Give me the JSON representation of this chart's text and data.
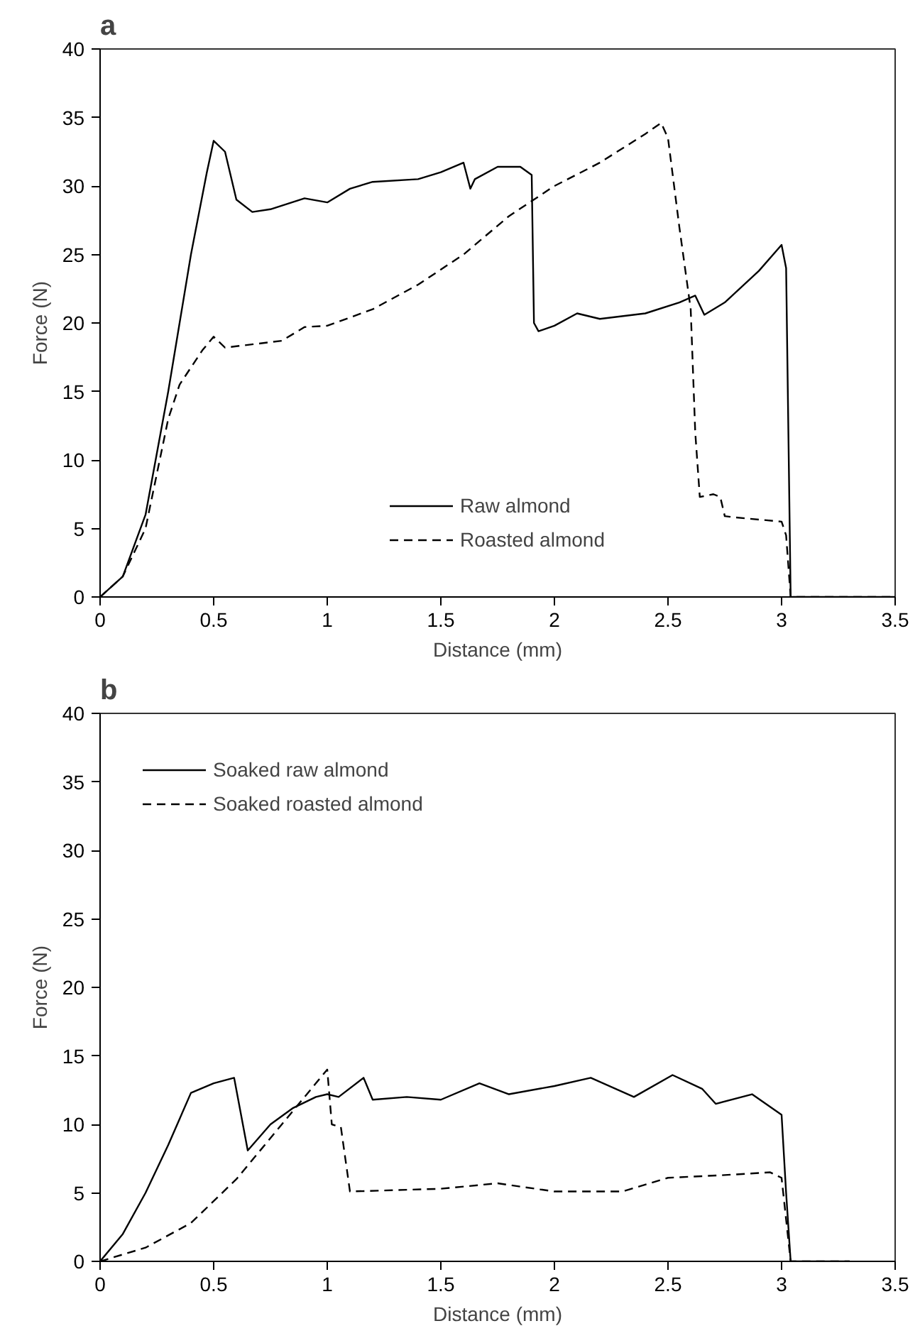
{
  "chart_data": [
    {
      "type": "line",
      "title": "a",
      "xlabel": "Distance (mm)",
      "ylabel": "Force (N)",
      "xlim": [
        0,
        3.5
      ],
      "ylim": [
        0,
        40
      ],
      "xticks": [
        0,
        0.5,
        1,
        1.5,
        2,
        2.5,
        3,
        3.5
      ],
      "yticks": [
        0,
        5,
        10,
        15,
        20,
        25,
        30,
        35,
        40
      ],
      "grid": false,
      "legend": "bottom",
      "series": [
        {
          "name": "Raw almond",
          "color": "#000000",
          "line_style": "solid",
          "x": [
            0,
            0.1,
            0.2,
            0.3,
            0.4,
            0.47,
            0.5,
            0.55,
            0.6,
            0.67,
            0.75,
            0.9,
            1.0,
            1.1,
            1.2,
            1.4,
            1.5,
            1.6,
            1.63,
            1.65,
            1.75,
            1.85,
            1.9,
            1.91,
            1.93,
            2.0,
            2.1,
            2.2,
            2.4,
            2.55,
            2.62,
            2.66,
            2.75,
            2.9,
            3.0,
            3.02,
            3.04,
            3.5
          ],
          "values": [
            0,
            1.5,
            6,
            15,
            25,
            31,
            33.3,
            32.5,
            29,
            28.1,
            28.3,
            29.1,
            28.8,
            29.8,
            30.3,
            30.5,
            31,
            31.7,
            29.8,
            30.5,
            31.4,
            31.4,
            30.8,
            20,
            19.4,
            19.8,
            20.7,
            20.3,
            20.7,
            21.5,
            22,
            20.6,
            21.5,
            23.8,
            25.7,
            24,
            0,
            0
          ]
        },
        {
          "name": "Roasted almond",
          "color": "#000000",
          "line_style": "dashed",
          "x": [
            0,
            0.1,
            0.2,
            0.3,
            0.35,
            0.45,
            0.5,
            0.55,
            0.6,
            0.8,
            0.9,
            1.0,
            1.2,
            1.4,
            1.6,
            1.8,
            2.0,
            2.2,
            2.4,
            2.47,
            2.5,
            2.55,
            2.6,
            2.62,
            2.64,
            2.7,
            2.73,
            2.75,
            2.8,
            3.0,
            3.02,
            3.04,
            3.5
          ],
          "values": [
            0,
            1.5,
            5,
            13,
            15.5,
            18,
            19,
            18.2,
            18.3,
            18.7,
            19.7,
            19.8,
            21,
            22.8,
            25,
            27.8,
            30,
            31.7,
            33.8,
            34.6,
            33.5,
            27,
            21,
            12,
            7.3,
            7.5,
            7.3,
            5.9,
            5.8,
            5.5,
            4.5,
            0,
            0
          ]
        }
      ]
    },
    {
      "type": "line",
      "title": "b",
      "xlabel": "Distance (mm)",
      "ylabel": "Force (N)",
      "xlim": [
        0,
        3.5
      ],
      "ylim": [
        0,
        40
      ],
      "xticks": [
        0,
        0.5,
        1,
        1.5,
        2,
        2.5,
        3,
        3.5
      ],
      "yticks": [
        0,
        5,
        10,
        15,
        20,
        25,
        30,
        35,
        40
      ],
      "grid": false,
      "legend": "top left",
      "series": [
        {
          "name": "Soaked raw almond",
          "color": "#000000",
          "line_style": "solid",
          "x": [
            0,
            0.1,
            0.2,
            0.3,
            0.4,
            0.5,
            0.59,
            0.65,
            0.75,
            0.85,
            0.95,
            1.0,
            1.05,
            1.16,
            1.2,
            1.35,
            1.5,
            1.67,
            1.8,
            2.0,
            2.16,
            2.35,
            2.52,
            2.65,
            2.71,
            2.87,
            3.0,
            3.02,
            3.04,
            3.3
          ],
          "values": [
            0,
            2,
            5,
            8.5,
            12.3,
            13,
            13.4,
            8.1,
            10,
            11.2,
            12,
            12.2,
            12,
            13.4,
            11.8,
            12,
            11.8,
            13.0,
            12.2,
            12.8,
            13.4,
            12.0,
            13.6,
            12.6,
            11.5,
            12.2,
            10.7,
            5,
            0,
            0
          ]
        },
        {
          "name": "Soaked roasted almond",
          "color": "#000000",
          "line_style": "dashed",
          "x": [
            0,
            0.2,
            0.4,
            0.6,
            0.8,
            0.95,
            1.0,
            1.02,
            1.06,
            1.1,
            1.5,
            1.75,
            2.0,
            2.3,
            2.5,
            2.75,
            2.95,
            3.0,
            3.04,
            3.3
          ],
          "values": [
            0,
            1,
            2.8,
            6,
            10,
            13,
            14,
            10,
            9.8,
            5.1,
            5.3,
            5.7,
            5.1,
            5.1,
            6.1,
            6.3,
            6.5,
            6.1,
            0,
            0
          ]
        }
      ]
    }
  ]
}
